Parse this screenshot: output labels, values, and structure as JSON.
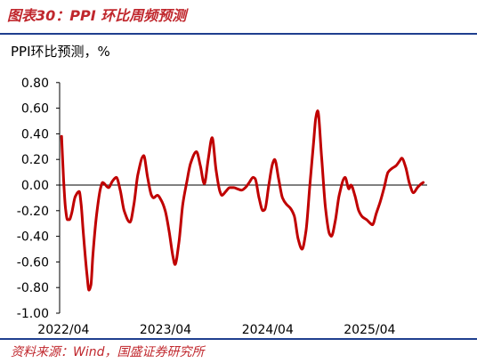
{
  "chart_data": {
    "type": "line",
    "title": "图表30：PPI 环比周频预测",
    "ylabel": "PPI环比预测，%",
    "ylim": [
      -1.0,
      0.8
    ],
    "y_ticks": [
      "0.80",
      "0.60",
      "0.40",
      "0.20",
      "0.00",
      "-0.20",
      "-0.40",
      "-0.60",
      "-0.80",
      "-1.00"
    ],
    "xlim": [
      "2022-03-18",
      "2025-10-24"
    ],
    "x_ticks": [
      {
        "label": "2022/04",
        "date": "2022-04-01"
      },
      {
        "label": "2023/04",
        "date": "2023-04-01"
      },
      {
        "label": "2024/04",
        "date": "2024-04-01"
      },
      {
        "label": "2025/04",
        "date": "2025-04-01"
      }
    ],
    "grid": false,
    "series": [
      {
        "color": "#C00000",
        "dates": [
          "2022-03-25",
          "2022-04-01",
          "2022-04-08",
          "2022-04-15",
          "2022-04-22",
          "2022-04-29",
          "2022-05-13",
          "2022-05-27",
          "2022-06-03",
          "2022-06-10",
          "2022-06-24",
          "2022-07-01",
          "2022-07-08",
          "2022-07-15",
          "2022-07-29",
          "2022-08-12",
          "2022-08-19",
          "2022-09-09",
          "2022-09-23",
          "2022-10-07",
          "2022-10-21",
          "2022-11-04",
          "2022-11-25",
          "2022-12-09",
          "2022-12-23",
          "2023-01-13",
          "2023-01-27",
          "2023-02-10",
          "2023-02-17",
          "2023-03-03",
          "2023-03-17",
          "2023-03-31",
          "2023-04-14",
          "2023-04-28",
          "2023-05-05",
          "2023-05-19",
          "2023-06-02",
          "2023-06-16",
          "2023-06-30",
          "2023-07-21",
          "2023-08-04",
          "2023-08-18",
          "2023-09-01",
          "2023-09-15",
          "2023-09-29",
          "2023-10-13",
          "2023-10-20",
          "2023-11-03",
          "2023-11-17",
          "2023-12-01",
          "2023-12-15",
          "2023-12-29",
          "2024-01-12",
          "2024-01-26",
          "2024-02-09",
          "2024-02-16",
          "2024-03-01",
          "2024-03-15",
          "2024-03-22",
          "2024-04-05",
          "2024-04-19",
          "2024-04-26",
          "2024-05-10",
          "2024-05-24",
          "2024-06-07",
          "2024-06-21",
          "2024-07-05",
          "2024-07-19",
          "2024-08-02",
          "2024-08-16",
          "2024-08-30",
          "2024-09-13",
          "2024-09-20",
          "2024-09-27",
          "2024-10-11",
          "2024-10-25",
          "2024-11-08",
          "2024-11-15",
          "2024-11-29",
          "2024-12-13",
          "2025-01-03",
          "2025-01-17",
          "2025-01-24",
          "2025-02-07",
          "2025-02-21",
          "2025-03-07",
          "2025-03-21",
          "2025-04-04",
          "2025-04-11",
          "2025-04-25",
          "2025-05-09",
          "2025-05-23",
          "2025-06-06",
          "2025-06-20",
          "2025-07-04",
          "2025-07-18",
          "2025-07-25",
          "2025-08-08",
          "2025-08-22",
          "2025-09-05",
          "2025-09-19",
          "2025-10-03",
          "2025-10-10"
        ],
        "values": [
          0.38,
          0.05,
          -0.18,
          -0.27,
          -0.27,
          -0.23,
          -0.09,
          -0.05,
          -0.15,
          -0.35,
          -0.7,
          -0.82,
          -0.78,
          -0.55,
          -0.22,
          -0.02,
          0.02,
          -0.02,
          0.03,
          0.06,
          -0.04,
          -0.2,
          -0.29,
          -0.15,
          0.08,
          0.23,
          0.06,
          -0.08,
          -0.1,
          -0.08,
          -0.12,
          -0.2,
          -0.36,
          -0.56,
          -0.62,
          -0.45,
          -0.15,
          0.02,
          0.17,
          0.26,
          0.15,
          0.01,
          0.2,
          0.37,
          0.12,
          -0.05,
          -0.08,
          -0.05,
          -0.02,
          -0.02,
          -0.03,
          -0.04,
          -0.02,
          0.02,
          0.06,
          0.05,
          -0.1,
          -0.2,
          -0.19,
          0.0,
          0.17,
          0.2,
          0.05,
          -0.1,
          -0.15,
          -0.18,
          -0.24,
          -0.42,
          -0.5,
          -0.36,
          0.0,
          0.35,
          0.52,
          0.58,
          0.22,
          -0.18,
          -0.38,
          -0.4,
          -0.28,
          -0.08,
          0.06,
          -0.03,
          0.0,
          -0.08,
          -0.2,
          -0.25,
          -0.27,
          -0.3,
          -0.31,
          -0.22,
          -0.13,
          -0.02,
          0.1,
          0.13,
          0.15,
          0.19,
          0.21,
          0.14,
          0.01,
          -0.06,
          -0.02,
          0.01,
          0.02
        ]
      }
    ]
  },
  "source": "资料来源：Wind，国盛证券研究所",
  "colors": {
    "title": "#C0272D",
    "source": "#C0272D",
    "rule": "#1F3F8F",
    "axis": "#000000",
    "text": "#000000"
  }
}
